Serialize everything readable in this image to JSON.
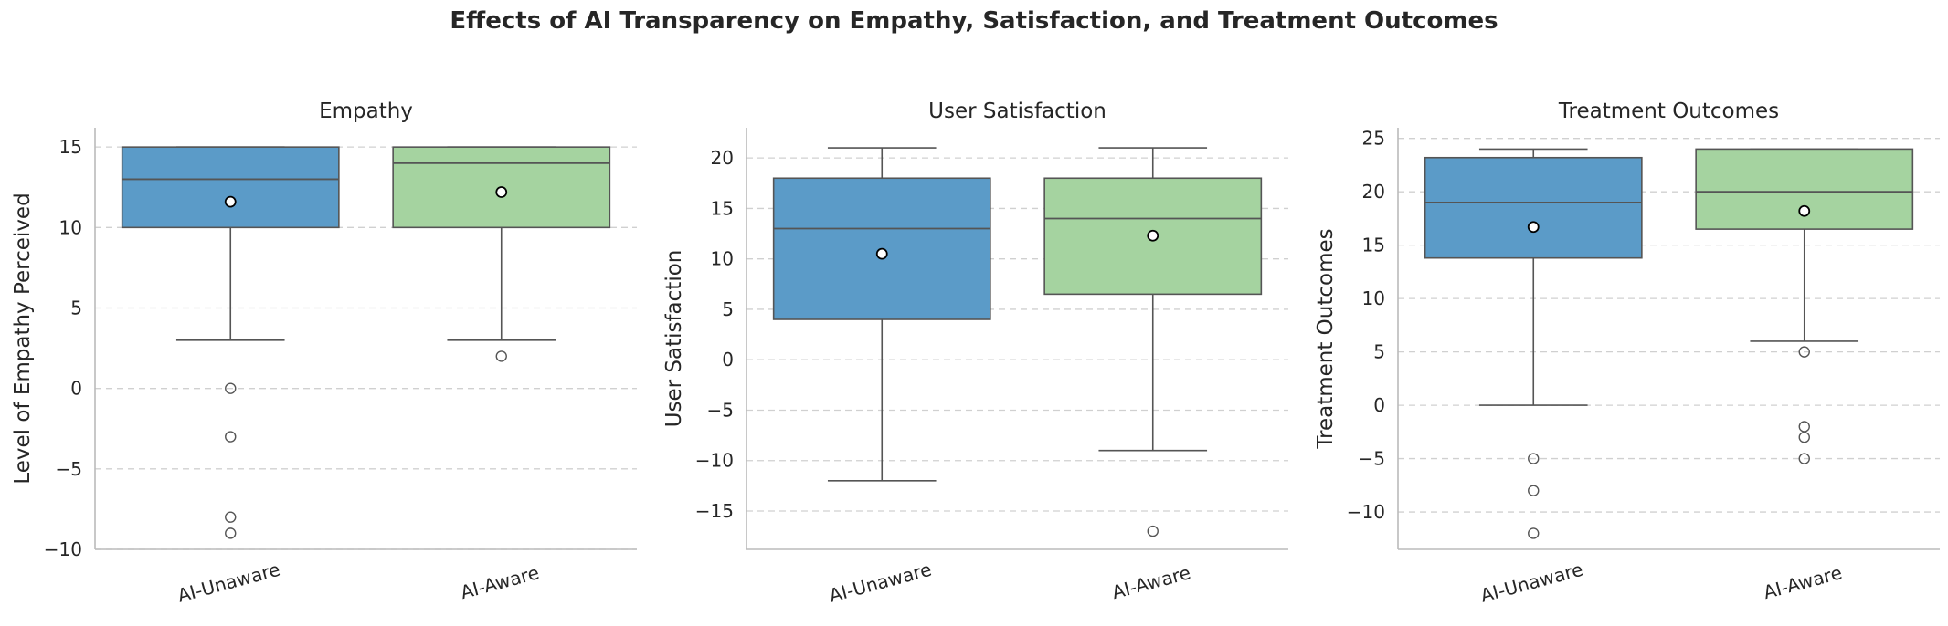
{
  "figure_title": "Effects of AI Transparency on Empathy, Satisfaction, and Treatment Outcomes",
  "colors": {
    "ai_unaware": "#5b9bc8",
    "ai_aware": "#a5d3a0",
    "box_edge": "#555555",
    "grid": "#d0d0d0",
    "text": "#262626"
  },
  "chart_data": [
    {
      "type": "box",
      "title": "Empathy",
      "xlabel": "",
      "ylabel": "Level of Empathy Perceived",
      "categories": [
        "AI-Unaware",
        "AI-Aware"
      ],
      "ylim": [
        -10,
        16.2
      ],
      "yticks": [
        -10,
        -5,
        0,
        5,
        10,
        15
      ],
      "grid": true,
      "boxes": [
        {
          "category": "AI-Unaware",
          "whisker_low": 3,
          "q1": 10,
          "median": 13,
          "q3": 15,
          "whisker_high": 15,
          "mean": 11.6,
          "outliers": [
            0,
            -3,
            -8,
            -9
          ]
        },
        {
          "category": "AI-Aware",
          "whisker_low": 3,
          "q1": 10,
          "median": 14,
          "q3": 15,
          "whisker_high": 15,
          "mean": 12.2,
          "outliers": [
            2
          ]
        }
      ]
    },
    {
      "type": "box",
      "title": "User Satisfaction",
      "xlabel": "",
      "ylabel": "User Satisfaction",
      "categories": [
        "AI-Unaware",
        "AI-Aware"
      ],
      "ylim": [
        -18.8,
        23
      ],
      "yticks": [
        -15,
        -10,
        -5,
        0,
        5,
        10,
        15,
        20
      ],
      "grid": true,
      "boxes": [
        {
          "category": "AI-Unaware",
          "whisker_low": -12,
          "q1": 4,
          "median": 13,
          "q3": 18,
          "whisker_high": 21,
          "mean": 10.5,
          "outliers": []
        },
        {
          "category": "AI-Aware",
          "whisker_low": -9,
          "q1": 6.5,
          "median": 14,
          "q3": 18,
          "whisker_high": 21,
          "mean": 12.3,
          "outliers": [
            -17
          ]
        }
      ]
    },
    {
      "type": "box",
      "title": "Treatment Outcomes",
      "xlabel": "",
      "ylabel": "Treatment Outcomes",
      "categories": [
        "AI-Unaware",
        "AI-Aware"
      ],
      "ylim": [
        -13.5,
        26
      ],
      "yticks": [
        -10,
        -5,
        0,
        5,
        10,
        15,
        20,
        25
      ],
      "grid": true,
      "boxes": [
        {
          "category": "AI-Unaware",
          "whisker_low": 0,
          "q1": 13.8,
          "median": 19,
          "q3": 23.2,
          "whisker_high": 24,
          "mean": 16.7,
          "outliers": [
            -5,
            -8,
            -12
          ]
        },
        {
          "category": "AI-Aware",
          "whisker_low": 6,
          "q1": 16.5,
          "median": 20,
          "q3": 24,
          "whisker_high": 24,
          "mean": 18.2,
          "outliers": [
            5,
            -2,
            -3,
            -5
          ]
        }
      ]
    }
  ]
}
